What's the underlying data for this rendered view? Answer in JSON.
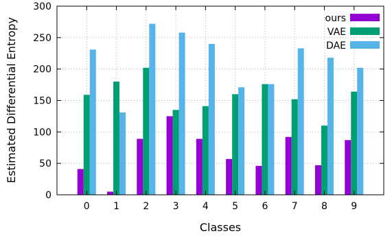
{
  "chart_data": {
    "type": "bar",
    "title": "",
    "xlabel": "Classes",
    "ylabel": "Estimated Differential Entropy",
    "categories": [
      "0",
      "1",
      "2",
      "3",
      "4",
      "5",
      "6",
      "7",
      "8",
      "9"
    ],
    "ylim": [
      0,
      300
    ],
    "yticks": [
      0,
      50,
      100,
      150,
      200,
      250,
      300
    ],
    "grid": true,
    "legend_position": "top-right",
    "series": [
      {
        "name": "ours",
        "color": "#9400d3",
        "values": [
          41,
          5,
          89,
          125,
          89,
          57,
          46,
          92,
          47,
          87
        ]
      },
      {
        "name": "VAE",
        "color": "#009e73",
        "values": [
          159,
          180,
          202,
          135,
          141,
          160,
          176,
          152,
          110,
          164
        ]
      },
      {
        "name": "DAE",
        "color": "#56b4e9",
        "values": [
          231,
          131,
          272,
          258,
          240,
          171,
          176,
          233,
          218,
          202
        ]
      }
    ]
  }
}
